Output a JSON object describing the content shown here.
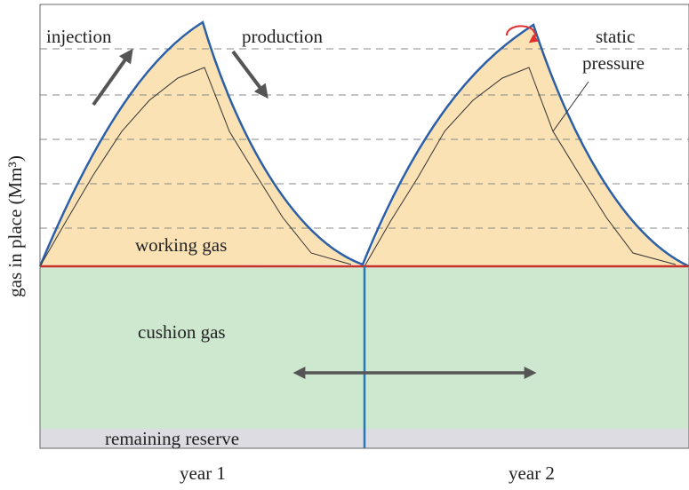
{
  "y_axis_label": "gas in place (Mm³)",
  "annotations": {
    "injection": "injection",
    "production": "production",
    "static": "static",
    "pressure": "pressure"
  },
  "regions": {
    "working_gas": "working gas",
    "cushion_gas": "cushion gas",
    "remaining_reserve": "remaining reserve"
  },
  "x_labels": [
    "year 1",
    "year 2"
  ]
}
